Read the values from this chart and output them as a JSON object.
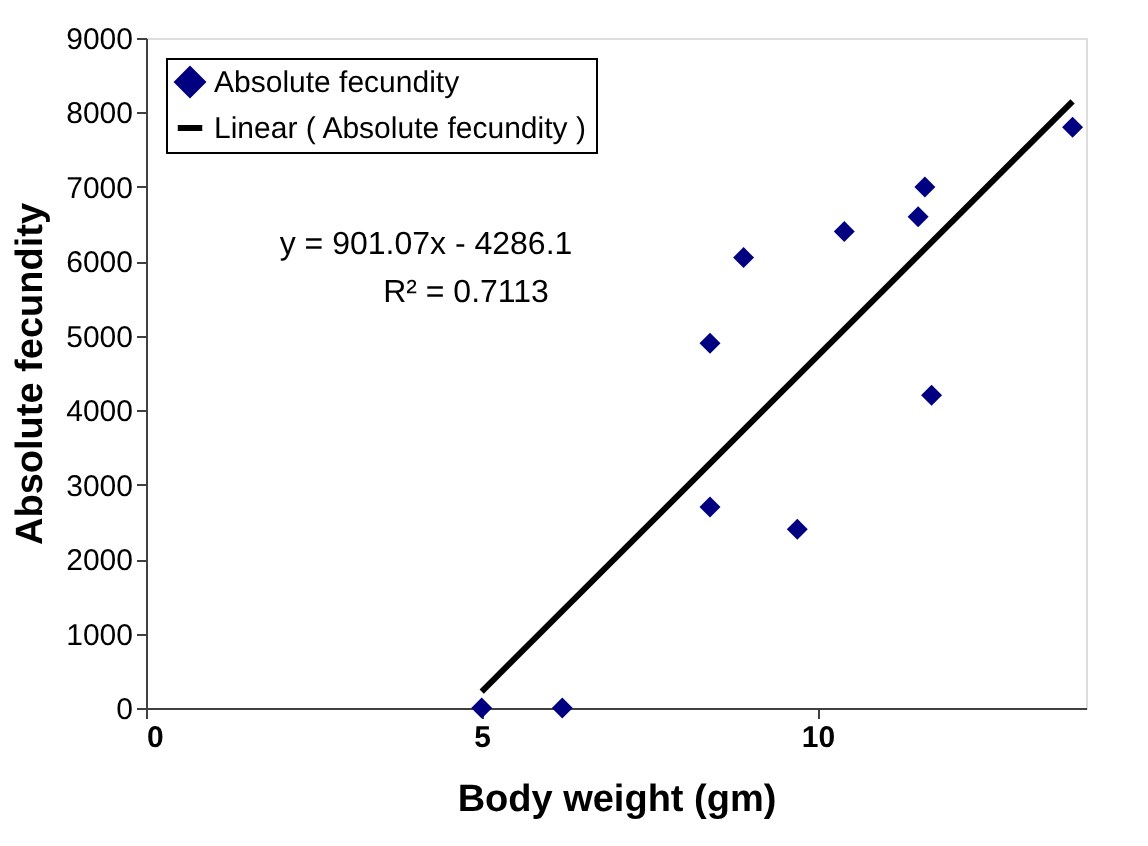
{
  "chart_data": {
    "type": "scatter",
    "xlabel": "Body weight (gm)",
    "ylabel": "Absolute fecundity",
    "xlim": [
      0,
      14
    ],
    "xticks": [
      0,
      5,
      10
    ],
    "ylim": [
      0,
      9000
    ],
    "yticks": [
      0,
      1000,
      2000,
      3000,
      4000,
      5000,
      6000,
      7000,
      8000,
      9000
    ],
    "grid": false,
    "legend": "top left",
    "series": [
      {
        "name": "Absolute fecundity",
        "marker": "diamond",
        "color": "#000080",
        "x": [
          5,
          6.2,
          8.4,
          8.4,
          8.9,
          9.7,
          10.4,
          11.5,
          11.6,
          11.7,
          13.8
        ],
        "values": [
          0,
          0,
          4900,
          2700,
          6050,
          2400,
          6400,
          6600,
          7000,
          4200,
          7800
        ]
      },
      {
        "name": "Linear ( Absolute fecundity )",
        "type": "line",
        "color": "#000000",
        "line_style": "solid",
        "x": [
          5,
          13.8
        ],
        "values": [
          220,
          8150
        ]
      }
    ],
    "annotations": [
      "y = 901.07x - 4286.1",
      "R² = 0.7113"
    ]
  }
}
